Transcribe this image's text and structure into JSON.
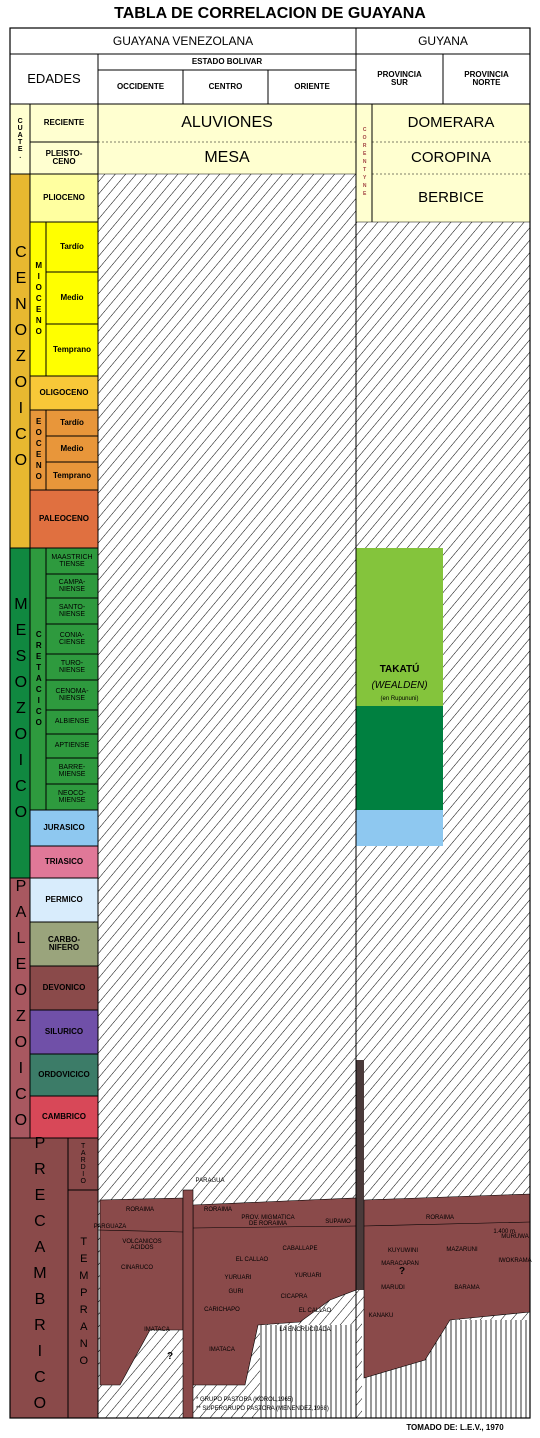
{
  "title": "TABLA DE CORRELACION DE GUAYANA",
  "header": {
    "venezuela": "GUAYANA VENEZOLANA",
    "guyana": "GUYANA",
    "ages": "EDADES",
    "state": "ESTADO BOLIVAR",
    "venezuela_columns": [
      "OCCIDENTE",
      "CENTRO",
      "ORIENTE"
    ],
    "guyana_columns": [
      "PROVINCIA\nSUR",
      "PROVINCIA\nNORTE"
    ]
  },
  "eras": [
    "CUATE.",
    "CENOZOICO",
    "MESOZOICO",
    "PALEOZOICO",
    "PRECAMBRICO"
  ],
  "subgroups": [
    "MIOCENO",
    "EOCENO",
    "CRETACICO"
  ],
  "periods": [
    "RECIENTE",
    "PLEISTO-\nCENO",
    "PLIOCENO",
    "Tardío",
    "Medio",
    "Temprano",
    "OLIGOCENO",
    "Tardío",
    "Medio",
    "Temprano",
    "PALEOCENO",
    "MAASTRICH\nTIENSE",
    "CAMPA-\nNIENSE",
    "SANTO-\nNIENSE",
    "CONIA-\nCIENSE",
    "TURO-\nNIENSE",
    "CENOMA-\nNIENSE",
    "ALBIENSE",
    "APTIENSE",
    "BARRE-\nMIENSE",
    "NEOCO-\nMIENSE",
    "JURASICO",
    "TRIASICO",
    "PERMICO",
    "CARBO-\nNIFERO",
    "DEVONICO",
    "SILURICO",
    "ORDOVICICO",
    "CAMBRICO"
  ],
  "precambrian_ages": [
    "TARDIO",
    "TEMPRANO"
  ],
  "formations": {
    "venezuela": [
      "ALUVIONES",
      "MESA"
    ],
    "corentyne": "CORENTYNE",
    "guyana": [
      "DOMERARA",
      "COROPINA",
      "BERBICE"
    ],
    "takatu": "TAKATÚ",
    "takatu_age": "(WEALDEN)",
    "takatu_note": "(en Rupununi)"
  },
  "precambrian_units": [
    "PARAGUA",
    "RORAIMA",
    "PARGUAZA",
    "VOLCANICOS\nACIDOS",
    "CINARUCO",
    "IMATACA",
    "?",
    "RORAIMA",
    "PROV. MIGMATICA\nDE RORAIMA",
    "SUPAMO",
    "CABALLAPE",
    "EL CALLAO",
    "YURUARI",
    "YURUARI",
    "GURI",
    "CICAPRA",
    "CARICHAPO",
    "EL CALLAO",
    "LA ENCRUCIJADA",
    "IMATACA",
    "RORAIMA",
    "1.400 m.",
    "KUYUWINI",
    "MAZARUNI",
    "MURUWA",
    "IWOKRAMA",
    "?",
    "MARACAPAN",
    "MARUDI",
    "BARAMA",
    "KANAKU"
  ],
  "footnotes": [
    "* GRUPO PASTORA (KOROL,1965)",
    "** SUPERGRUPO PASTORA (MENENDEZ,1968)"
  ],
  "source": "TOMADO DE: L.E.V., 1970"
}
